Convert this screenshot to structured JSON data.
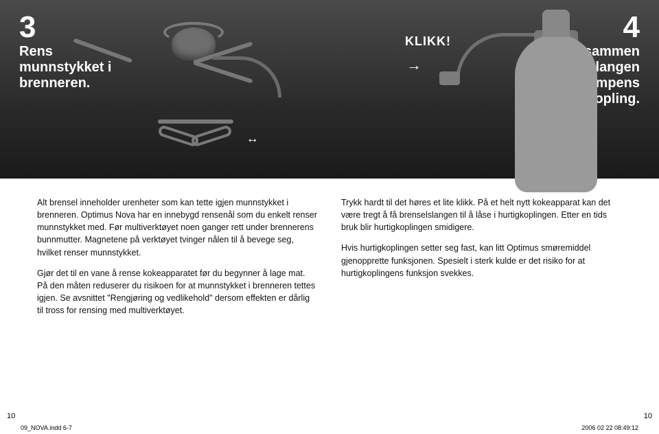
{
  "step3": {
    "number": "3",
    "title": "Rens\nmunnstykket i\nbrenneren."
  },
  "step4": {
    "number": "4",
    "title": "Kople sammen\nbrenselslangen\nmed pumpens\nhurtigkopling.",
    "klikk": "KLIKK!"
  },
  "col1": {
    "p1": "Alt brensel inneholder urenheter som kan tette igjen munnstykket i brenneren. Optimus Nova har en innebygd rensenål som du enkelt renser munnstykket med. Før multiverktøyet noen ganger rett under brennerens bunnmutter. Magnetene på verktøyet tvinger nålen til å bevege seg, hvilket renser munnstykket.",
    "p2": "Gjør det til en vane å rense kokeapparatet før du begynner å lage mat. På den måten reduserer du risikoen for at munnstykket i brenneren tettes igjen. Se avsnittet \"Rengjøring og vedlikehold\" dersom effekten er dårlig til tross for rensing med multiverktøyet."
  },
  "col2": {
    "p1": "Trykk hardt til det høres et lite klikk. På et helt nytt kokeapparat kan det være tregt å få brenselslangen til å låse i hurtigkoplingen. Etter en tids bruk blir hurtigkoplingen smidigere.",
    "p2": "Hvis hurtigkoplingen setter seg fast, kan litt Optimus smøremiddel gjenopprette funksjonen. Spesielt i sterk kulde er det risiko for at hurtigkoplingens funksjon svekkes."
  },
  "footer": {
    "page_left": "10",
    "page_right": "10",
    "slug": "09_NOVA.indd   6-7",
    "timestamp": "2006 02 22   08:49:12"
  }
}
